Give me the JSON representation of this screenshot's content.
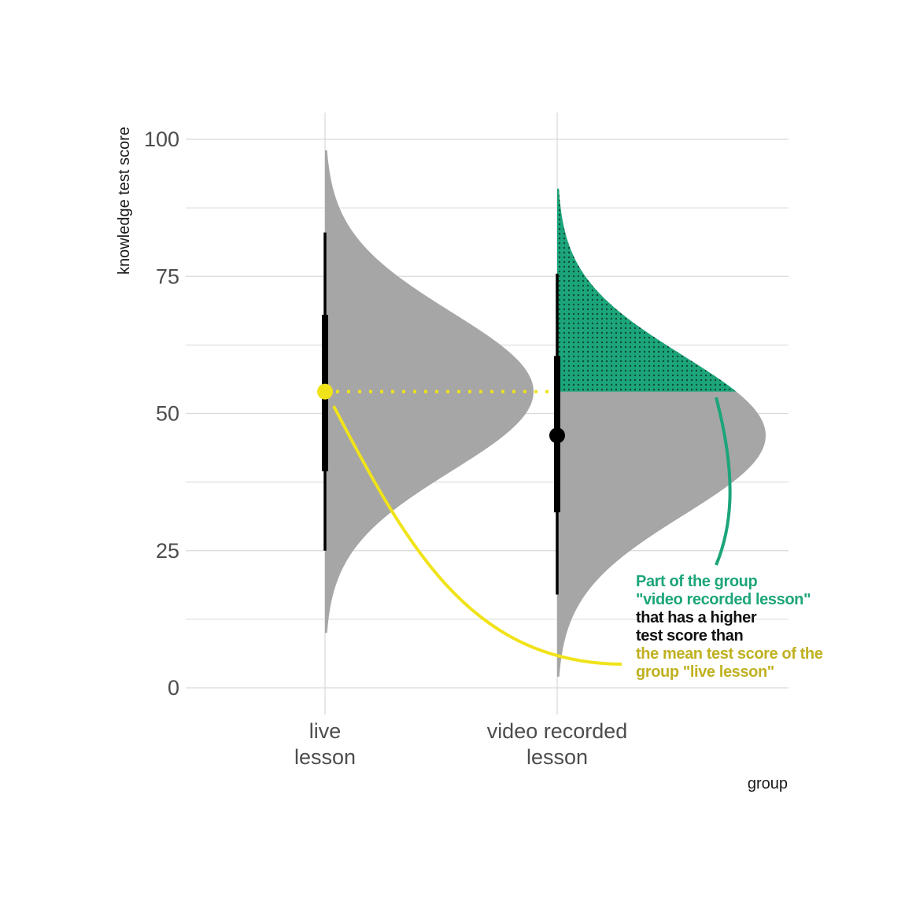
{
  "chart_data": {
    "type": "halfeye",
    "xlabel": "group",
    "ylabel": "knowledge test score",
    "ylim": [
      0,
      100
    ],
    "y_ticks": [
      0,
      25,
      50,
      75,
      100
    ],
    "y_tick_labels": [
      "0",
      "25",
      "50",
      "75",
      "100"
    ],
    "grid": true,
    "categories": [
      {
        "label_lines": [
          "live",
          "lesson"
        ]
      },
      {
        "label_lines": [
          "video recorded",
          "lesson"
        ]
      }
    ],
    "series": [
      {
        "group": "live lesson",
        "distribution": {
          "mean": 54,
          "sd": 14.5,
          "min": 10,
          "max": 98
        },
        "interval_66": [
          39.5,
          68
        ],
        "interval_95": [
          25,
          83
        ],
        "point": 54,
        "point_color": "#f0e31a",
        "fill": "#a6a6a6"
      },
      {
        "group": "video recorded lesson",
        "distribution": {
          "mean": 46,
          "sd": 14.5,
          "min": 2,
          "max": 91
        },
        "interval_66": [
          32,
          60.5
        ],
        "interval_95": [
          17,
          75.5
        ],
        "point": 46,
        "point_color": "#000000",
        "fill": "#a6a6a6",
        "highlight_above": 54,
        "highlight_fill": "#1ca57a"
      }
    ],
    "reference_line": {
      "y": 54,
      "style": "dotted",
      "color": "#f0e31a"
    },
    "annotation": [
      {
        "text": "Part of the group",
        "color": "#1ca57a"
      },
      {
        "text": "\"video recorded lesson\"",
        "color": "#1ca57a"
      },
      {
        "text": "that has a higher",
        "color": "#111111"
      },
      {
        "text": "test score than",
        "color": "#111111"
      },
      {
        "text": "the mean test score of the",
        "color": "#c0b122"
      },
      {
        "text": "group \"live lesson\"",
        "color": "#c0b122"
      }
    ]
  },
  "colors": {
    "grid": "#d9d9d9",
    "density": "#a6a6a6",
    "highlight": "#1ca57a",
    "mean_marker": "#f0e31a",
    "interval": "#000000"
  }
}
